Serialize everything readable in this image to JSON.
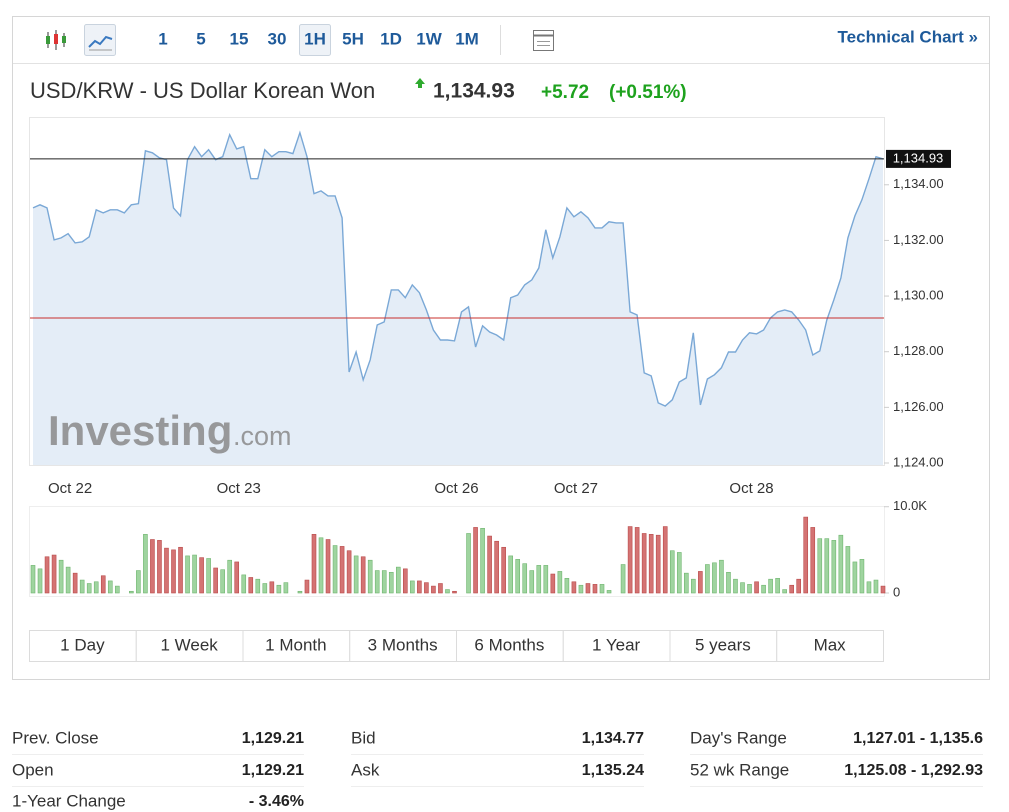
{
  "toolbar": {
    "intervals": [
      "1",
      "5",
      "15",
      "30",
      "1H",
      "5H",
      "1D",
      "1W",
      "1M"
    ],
    "technical_chart": "Technical Chart »"
  },
  "header": {
    "title": "USD/KRW - US Dollar Korean Won",
    "price": "1,134.93",
    "change": "+5.72",
    "change_percent": "(+0.51%)"
  },
  "watermark": {
    "brand": "Investing",
    "suffix": ".com"
  },
  "chart_data": {
    "type": "line",
    "categories": [
      null,
      null,
      null,
      null,
      null,
      "Oct 22",
      null,
      null,
      null,
      null,
      null,
      null,
      null,
      null,
      null,
      null,
      null,
      null,
      null,
      null,
      null,
      null,
      null,
      null,
      null,
      null,
      null,
      null,
      null,
      "Oct 23",
      null,
      null,
      null,
      null,
      null,
      null,
      null,
      null,
      null,
      null,
      null,
      null,
      null,
      null,
      null,
      null,
      null,
      null,
      null,
      null,
      null,
      null,
      null,
      null,
      null,
      null,
      null,
      null,
      null,
      null,
      "Oct 26",
      null,
      null,
      null,
      null,
      null,
      null,
      null,
      null,
      null,
      null,
      null,
      null,
      null,
      null,
      null,
      null,
      "Oct 27",
      null,
      null,
      null,
      null,
      null,
      null,
      null,
      null,
      null,
      null,
      null,
      null,
      null,
      null,
      null,
      null,
      null,
      null,
      null,
      null,
      null,
      null,
      null,
      null,
      "Oct 28",
      null,
      null,
      null,
      null,
      null,
      null,
      null,
      null,
      null,
      null,
      null,
      null,
      null,
      null,
      null,
      null,
      null,
      null,
      null
    ],
    "values": [
      1133.17,
      1133.28,
      1133.17,
      1132.02,
      1132.09,
      1132.24,
      1131.91,
      1131.95,
      1132.13,
      1133.1,
      1132.99,
      1133.1,
      1133.1,
      1132.99,
      1133.28,
      1133.32,
      1135.22,
      1135.15,
      1134.97,
      1134.9,
      1133.17,
      1132.88,
      1134.9,
      1135.37,
      1135.01,
      1135.26,
      1134.9,
      1135.01,
      1135.8,
      1135.29,
      1135.37,
      1134.22,
      1134.22,
      1135.26,
      1135.01,
      1135.19,
      1135.19,
      1135.12,
      1135.87,
      1135.01,
      1133.68,
      1133.78,
      1133.6,
      1133.6,
      1132.81,
      1127.27,
      1127.99,
      1126.99,
      1127.71,
      1128.96,
      1129.07,
      1130.22,
      1130.22,
      1129.94,
      1130.4,
      1130.12,
      1129.5,
      1128.78,
      1128.42,
      1128.42,
      1128.39,
      1129.43,
      1129.61,
      1128.17,
      1128.93,
      1128.71,
      1128.6,
      1128.42,
      1129.94,
      1130.04,
      1130.4,
      1130.58,
      1131.01,
      1132.38,
      1131.37,
      1132.13,
      1133.17,
      1132.85,
      1133.03,
      1132.81,
      1132.45,
      1132.45,
      1132.67,
      1132.63,
      1132.63,
      1129.43,
      1129.32,
      1127.24,
      1127.13,
      1126.16,
      1126.05,
      1126.27,
      1126.91,
      1127.06,
      1128.68,
      1126.09,
      1127.02,
      1127.17,
      1127.42,
      1127.99,
      1127.99,
      1128.42,
      1128.68,
      1128.64,
      1128.78,
      1129.22,
      1129.43,
      1129.5,
      1129.43,
      1129.14,
      1128.78,
      1127.88,
      1128.03,
      1129.14,
      1129.86,
      1130.65,
      1132.09,
      1132.88,
      1133.46,
      1134.22,
      1135.01,
      1134.93
    ],
    "color": "#7aa8d6",
    "fill": "#e4edf7",
    "ylim": [
      1124,
      1136.4
    ],
    "yticks": [
      {
        "value": 1124,
        "label": "1,124.00"
      },
      {
        "value": 1126,
        "label": "1,126.00"
      },
      {
        "value": 1128,
        "label": "1,128.00"
      },
      {
        "value": 1130,
        "label": "1,130.00"
      },
      {
        "value": 1132,
        "label": "1,132.00"
      },
      {
        "value": 1134,
        "label": "1,134.00"
      }
    ],
    "reference_value": 1129.21,
    "reference_color": "#c9302c",
    "volume": {
      "values": [
        3200,
        2800,
        4200,
        4400,
        3800,
        3000,
        2300,
        1500,
        1100,
        1300,
        2000,
        1400,
        800,
        0,
        200,
        2600,
        6800,
        6200,
        6100,
        5200,
        5000,
        5300,
        4300,
        4400,
        4100,
        4000,
        2900,
        2700,
        3800,
        3600,
        2100,
        1800,
        1600,
        1100,
        1300,
        900,
        1200,
        0,
        200,
        1500,
        6800,
        6400,
        6200,
        5500,
        5400,
        4900,
        4300,
        4200,
        3800,
        2600,
        2600,
        2400,
        3000,
        2800,
        1400,
        1400,
        1200,
        800,
        1100,
        400,
        200,
        0,
        6900,
        7600,
        7500,
        6600,
        6000,
        5300,
        4300,
        3900,
        3400,
        2600,
        3200,
        3200,
        2200,
        2500,
        1700,
        1300,
        900,
        1100,
        1000,
        1000,
        300,
        0,
        3300,
        7700,
        7600,
        6900,
        6800,
        6700,
        7700,
        4900,
        4700,
        2300,
        1600,
        2500,
        3300,
        3500,
        3800,
        2400,
        1600,
        1200,
        1000,
        1300,
        900,
        1600,
        1700,
        400,
        900,
        1600,
        8800,
        7600,
        6300,
        6300,
        6100,
        6700,
        5400,
        3600,
        3900,
        1300,
        1500,
        800
      ],
      "ylim": [
        0,
        10200
      ],
      "yticks": [
        {
          "value": 10000,
          "label": "10.0K"
        },
        0
      ],
      "up_color": "#9fd49f",
      "down_color": "#d47373"
    }
  },
  "periods": [
    "1 Day",
    "1 Week",
    "1 Month",
    "3 Months",
    "6 Months",
    "1 Year",
    "5 years",
    "Max"
  ],
  "stats": {
    "rows": [
      [
        [
          "Prev. Close",
          "1,129.21"
        ],
        [
          "Bid",
          "1,134.77"
        ],
        [
          "Day's Range",
          "1,127.01 - 1,135.6"
        ]
      ],
      [
        [
          "Open",
          "1,129.21"
        ],
        [
          "Ask",
          "1,135.24"
        ],
        [
          "52 wk Range",
          "1,125.08 - 1,292.93"
        ]
      ],
      [
        [
          "1-Year Change",
          "- 3.46%"
        ]
      ]
    ]
  }
}
